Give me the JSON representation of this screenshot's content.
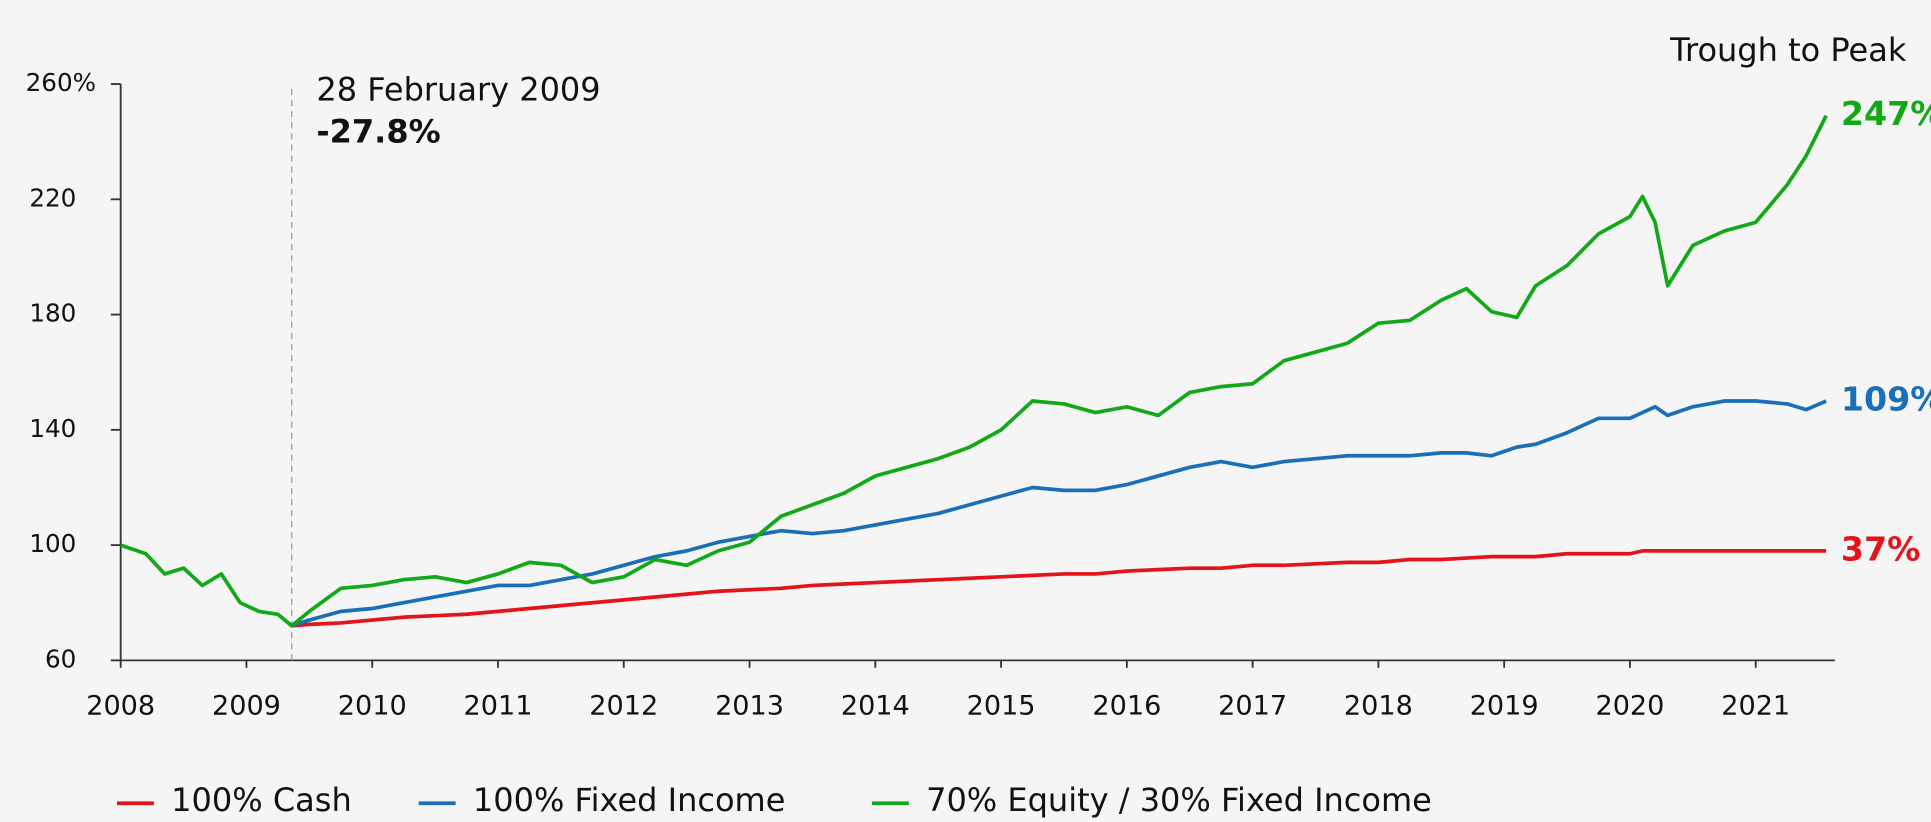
{
  "chart_data": {
    "type": "line",
    "title": "Trough to Peak",
    "x": [
      2008.0,
      2008.2,
      2008.35,
      2008.5,
      2008.65,
      2008.8,
      2008.95,
      2009.1,
      2009.25,
      2009.36,
      2009.5,
      2009.75,
      2010.0,
      2010.25,
      2010.5,
      2010.75,
      2011.0,
      2011.25,
      2011.5,
      2011.75,
      2012.0,
      2012.25,
      2012.5,
      2012.75,
      2013.0,
      2013.25,
      2013.5,
      2013.75,
      2014.0,
      2014.25,
      2014.5,
      2014.75,
      2015.0,
      2015.25,
      2015.5,
      2015.75,
      2016.0,
      2016.25,
      2016.5,
      2016.75,
      2017.0,
      2017.25,
      2017.5,
      2017.75,
      2018.0,
      2018.25,
      2018.5,
      2018.7,
      2018.9,
      2019.1,
      2019.25,
      2019.5,
      2019.75,
      2020.0,
      2020.1,
      2020.2,
      2020.3,
      2020.5,
      2020.75,
      2021.0,
      2021.25,
      2021.4,
      2021.56
    ],
    "series": [
      {
        "name": "100% Cash",
        "color": "#e3141b",
        "end_label": "37%",
        "values": [
          null,
          null,
          null,
          null,
          null,
          null,
          null,
          null,
          null,
          72,
          72.5,
          73,
          74,
          75,
          75.5,
          76,
          77,
          78,
          79,
          80,
          81,
          82,
          83,
          84,
          84.5,
          85,
          86,
          86.5,
          87,
          87.5,
          88,
          88.5,
          89,
          89.5,
          90,
          90,
          91,
          91.5,
          92,
          92,
          93,
          93,
          93.5,
          94,
          94,
          95,
          95,
          95.5,
          96,
          96,
          96,
          97,
          97,
          97,
          98,
          98,
          98,
          98,
          98,
          98,
          98,
          98,
          98
        ]
      },
      {
        "name": "100% Fixed Income",
        "color": "#1a6fb8",
        "end_label": "109%",
        "values": [
          null,
          null,
          null,
          null,
          null,
          null,
          null,
          null,
          null,
          72,
          74,
          77,
          78,
          80,
          82,
          84,
          86,
          86,
          88,
          90,
          93,
          96,
          98,
          101,
          103,
          105,
          104,
          105,
          107,
          109,
          111,
          114,
          117,
          120,
          119,
          119,
          121,
          124,
          127,
          129,
          127,
          129,
          130,
          131,
          131,
          131,
          132,
          132,
          131,
          134,
          135,
          139,
          144,
          144,
          146,
          148,
          145,
          148,
          150,
          150,
          149,
          147,
          150
        ]
      },
      {
        "name": "70% Equity / 30% Fixed Income",
        "color": "#13a818",
        "end_label": "247%",
        "values": [
          100,
          97,
          90,
          92,
          86,
          90,
          80,
          77,
          76,
          72,
          77,
          85,
          86,
          88,
          89,
          87,
          90,
          94,
          93,
          87,
          89,
          95,
          93,
          98,
          101,
          110,
          114,
          118,
          124,
          127,
          130,
          134,
          140,
          150,
          149,
          146,
          148,
          145,
          153,
          155,
          156,
          164,
          167,
          170,
          177,
          178,
          185,
          189,
          181,
          179,
          190,
          197,
          208,
          214,
          221,
          212,
          190,
          204,
          209,
          212,
          225,
          235,
          249
        ]
      }
    ],
    "annotation": {
      "x": 2009.36,
      "date": "28 February 2009",
      "value": "-27.8%"
    },
    "xlim": [
      2008,
      2021.63
    ],
    "ylim": [
      60,
      260
    ],
    "xticks": [
      2008,
      2009,
      2010,
      2011,
      2012,
      2013,
      2014,
      2015,
      2016,
      2017,
      2018,
      2019,
      2020,
      2021
    ],
    "yticks": [
      60,
      100,
      140,
      180,
      220,
      {
        "value": 260,
        "label": "260%"
      }
    ],
    "grid": false
  }
}
